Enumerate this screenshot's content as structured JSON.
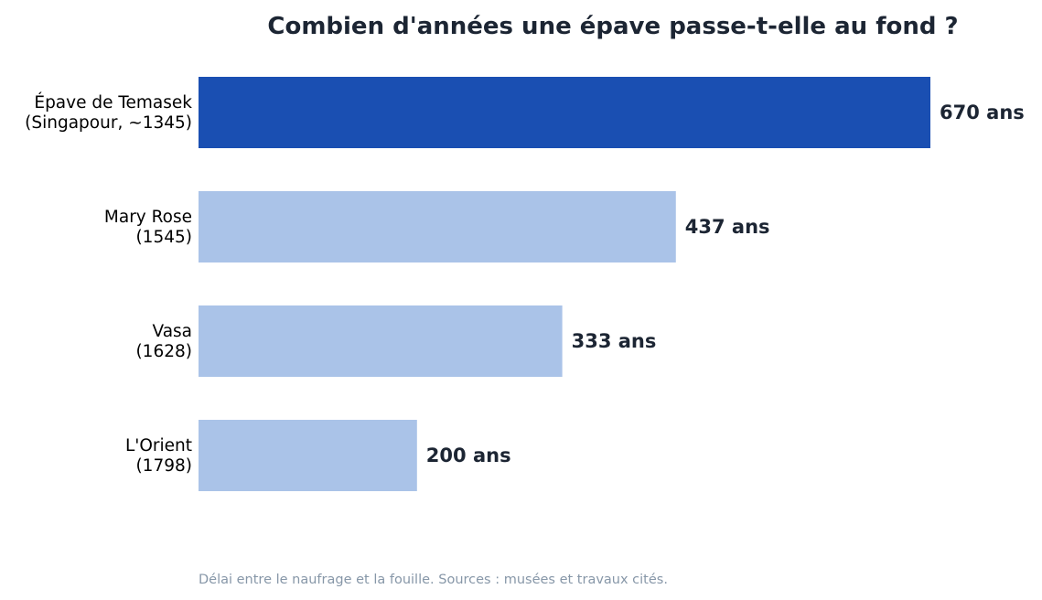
{
  "chart_data": {
    "type": "bar",
    "orientation": "horizontal",
    "title": "Combien d'années une épave passe-t-elle au fond ?",
    "categories": [
      [
        "Épave de Temasek",
        "(Singapour, ~1345)"
      ],
      [
        "Mary Rose",
        "(1545)"
      ],
      [
        "Vasa",
        "(1628)"
      ],
      [
        "L'Orient",
        "(1798)"
      ]
    ],
    "values": [
      670,
      437,
      333,
      200
    ],
    "value_labels": [
      "670 ans",
      "437 ans",
      "333 ans",
      "200 ans"
    ],
    "unit": "ans",
    "highlight_index": 0,
    "xlim": [
      0,
      670
    ],
    "grid": false,
    "colors": {
      "highlight": "#1a4fb2",
      "default": "#aac3e8"
    },
    "footnote": "Délai entre le naufrage et la fouille. Sources : musées et travaux cités."
  }
}
